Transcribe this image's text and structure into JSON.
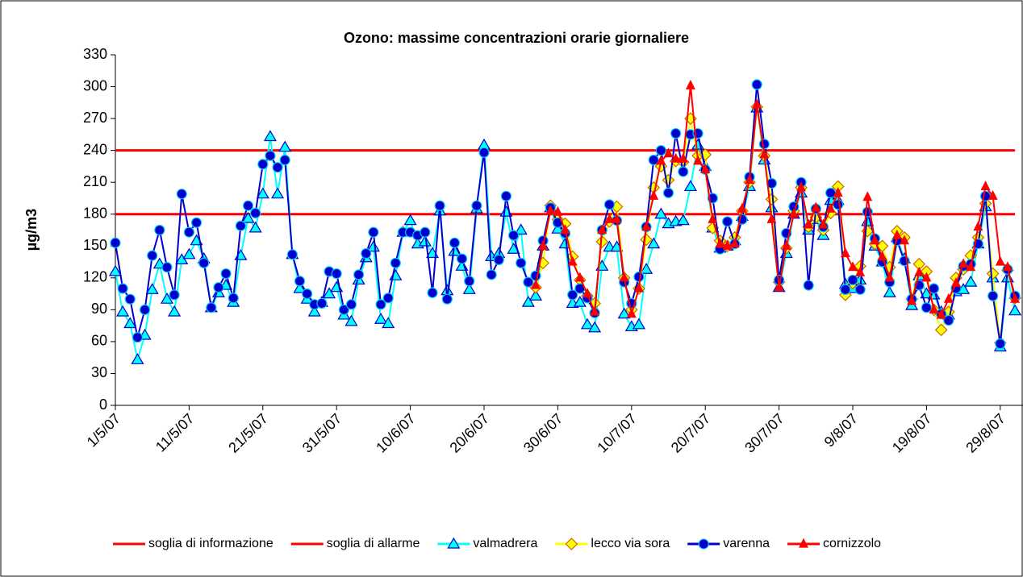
{
  "chart_data": {
    "type": "line",
    "title": "Ozono: massime concentrazioni  orarie giornaliere",
    "y_label": "µg/m3",
    "categories": [
      "1/5/07",
      null,
      null,
      null,
      null,
      null,
      null,
      null,
      null,
      null,
      "11/5/07",
      null,
      null,
      null,
      null,
      null,
      null,
      null,
      null,
      null,
      "21/5/07",
      null,
      null,
      null,
      null,
      null,
      null,
      null,
      null,
      null,
      "31/5/07",
      null,
      null,
      null,
      null,
      null,
      null,
      null,
      null,
      null,
      "10/6/07",
      null,
      null,
      null,
      null,
      null,
      null,
      null,
      null,
      null,
      "20/6/07",
      null,
      null,
      null,
      null,
      null,
      null,
      null,
      null,
      null,
      "30/6/07",
      null,
      null,
      null,
      null,
      null,
      null,
      null,
      null,
      null,
      "10/7/07",
      null,
      null,
      null,
      null,
      null,
      null,
      null,
      null,
      null,
      "20/7/07",
      null,
      null,
      null,
      null,
      null,
      null,
      null,
      null,
      null,
      "30/7/07",
      null,
      null,
      null,
      null,
      null,
      null,
      null,
      null,
      null,
      "9/8/07",
      null,
      null,
      null,
      null,
      null,
      null,
      null,
      null,
      null,
      "19/8/07",
      null,
      null,
      null,
      null,
      null,
      null,
      null,
      null,
      null,
      "29/8/07",
      null,
      null
    ],
    "ylim": [
      0,
      330
    ],
    "yticks": [
      0,
      30,
      60,
      90,
      120,
      150,
      180,
      210,
      240,
      270,
      300,
      330
    ],
    "legend": "bottom",
    "series": [
      {
        "name": "soglia di informazione",
        "color": "#ff0000",
        "marker": "none",
        "values": [
          180,
          180,
          180,
          180,
          180,
          180,
          180,
          180,
          180,
          180,
          180,
          180,
          180,
          180,
          180,
          180,
          180,
          180,
          180,
          180,
          180,
          180,
          180,
          180,
          180,
          180,
          180,
          180,
          180,
          180,
          180,
          180,
          180,
          180,
          180,
          180,
          180,
          180,
          180,
          180,
          180,
          180,
          180,
          180,
          180,
          180,
          180,
          180,
          180,
          180,
          180,
          180,
          180,
          180,
          180,
          180,
          180,
          180,
          180,
          180,
          180,
          180,
          180,
          180,
          180,
          180,
          180,
          180,
          180,
          180,
          180,
          180,
          180,
          180,
          180,
          180,
          180,
          180,
          180,
          180,
          180,
          180,
          180,
          180,
          180,
          180,
          180,
          180,
          180,
          180,
          180,
          180,
          180,
          180,
          180,
          180,
          180,
          180,
          180,
          180,
          180,
          180,
          180,
          180,
          180,
          180,
          180,
          180,
          180,
          180,
          180,
          180,
          180,
          180,
          180,
          180,
          180,
          180,
          180,
          180,
          180,
          180,
          180
        ]
      },
      {
        "name": "soglia di allarme",
        "color": "#ff0000",
        "marker": "none",
        "values": [
          240,
          240,
          240,
          240,
          240,
          240,
          240,
          240,
          240,
          240,
          240,
          240,
          240,
          240,
          240,
          240,
          240,
          240,
          240,
          240,
          240,
          240,
          240,
          240,
          240,
          240,
          240,
          240,
          240,
          240,
          240,
          240,
          240,
          240,
          240,
          240,
          240,
          240,
          240,
          240,
          240,
          240,
          240,
          240,
          240,
          240,
          240,
          240,
          240,
          240,
          240,
          240,
          240,
          240,
          240,
          240,
          240,
          240,
          240,
          240,
          240,
          240,
          240,
          240,
          240,
          240,
          240,
          240,
          240,
          240,
          240,
          240,
          240,
          240,
          240,
          240,
          240,
          240,
          240,
          240,
          240,
          240,
          240,
          240,
          240,
          240,
          240,
          240,
          240,
          240,
          240,
          240,
          240,
          240,
          240,
          240,
          240,
          240,
          240,
          240,
          240,
          240,
          240,
          240,
          240,
          240,
          240,
          240,
          240,
          240,
          240,
          240,
          240,
          240,
          240,
          240,
          240,
          240,
          240,
          240,
          240,
          240,
          240
        ]
      },
      {
        "name": "valmadrera",
        "color": "#00ffff",
        "marker": "triangle",
        "marker_edge": "#0000cc",
        "values": [
          126,
          88,
          77,
          43,
          66,
          109,
          133,
          100,
          88,
          137,
          142,
          155,
          138,
          92,
          106,
          113,
          97,
          141,
          176,
          167,
          199,
          253,
          199,
          243,
          142,
          110,
          100,
          88,
          97,
          105,
          111,
          85,
          79,
          118,
          139,
          149,
          81,
          77,
          122,
          163,
          174,
          152,
          154,
          143,
          183,
          108,
          145,
          131,
          109,
          185,
          245,
          140,
          143,
          182,
          147,
          165,
          97,
          103,
          150,
          186,
          166,
          152,
          96,
          97,
          76,
          73,
          131,
          149,
          149,
          86,
          74,
          76,
          128,
          152,
          180,
          171,
          173,
          174,
          206,
          245,
          225,
          167,
          148,
          150,
          155,
          178,
          206,
          280,
          231,
          186,
          111,
          143,
          180,
          200,
          165,
          175,
          160,
          193,
          193,
          114,
          110,
          118,
          173,
          150,
          135,
          106,
          158,
          138,
          94,
          122,
          105,
          104,
          88,
          85,
          107,
          109,
          116,
          152,
          187,
          120,
          55,
          120,
          89
        ]
      },
      {
        "name": "lecco via sora",
        "color": "#ffff00",
        "marker": "diamond",
        "marker_edge": "#cc6600",
        "values": [
          null,
          null,
          null,
          null,
          null,
          null,
          null,
          null,
          null,
          null,
          null,
          null,
          null,
          null,
          null,
          null,
          null,
          null,
          null,
          null,
          null,
          null,
          null,
          null,
          null,
          null,
          null,
          null,
          null,
          null,
          null,
          null,
          null,
          null,
          null,
          null,
          null,
          null,
          null,
          null,
          null,
          null,
          null,
          null,
          null,
          null,
          null,
          null,
          null,
          null,
          null,
          null,
          null,
          null,
          null,
          null,
          null,
          111,
          134,
          188,
          175,
          171,
          140,
          118,
          103,
          96,
          154,
          173,
          187,
          120,
          90,
          110,
          156,
          205,
          225,
          212,
          230,
          229,
          270,
          235,
          236,
          167,
          155,
          150,
          158,
          183,
          210,
          281,
          235,
          194,
          116,
          148,
          183,
          205,
          168,
          177,
          165,
          181,
          206,
          104,
          115,
          131,
          164,
          152,
          150,
          130,
          164,
          158,
          100,
          133,
          126,
          90,
          71,
          88,
          120,
          128,
          141,
          158,
          190,
          124,
          59,
          127,
          101
        ]
      },
      {
        "name": "varenna",
        "color": "#0000cc",
        "marker": "circle",
        "marker_edge": "#00ccff",
        "values": [
          153,
          110,
          100,
          64,
          90,
          141,
          165,
          130,
          104,
          199,
          163,
          172,
          134,
          92,
          111,
          124,
          101,
          169,
          188,
          181,
          227,
          235,
          224,
          231,
          142,
          117,
          105,
          95,
          96,
          126,
          124,
          90,
          95,
          123,
          143,
          163,
          95,
          101,
          134,
          163,
          163,
          160,
          163,
          106,
          188,
          100,
          153,
          138,
          117,
          188,
          238,
          123,
          137,
          197,
          160,
          134,
          116,
          122,
          155,
          186,
          172,
          162,
          104,
          110,
          101,
          87,
          165,
          189,
          174,
          116,
          96,
          121,
          168,
          231,
          240,
          200,
          256,
          220,
          255,
          256,
          222,
          195,
          147,
          173,
          152,
          175,
          215,
          302,
          246,
          209,
          118,
          162,
          187,
          210,
          113,
          185,
          168,
          200,
          189,
          109,
          118,
          109,
          182,
          157,
          135,
          116,
          155,
          136,
          100,
          113,
          92,
          110,
          86,
          80,
          110,
          131,
          133,
          152,
          197,
          103,
          58,
          128,
          103
        ]
      },
      {
        "name": "cornizzolo",
        "color": "#ff0000",
        "marker": "small-triangle",
        "marker_edge": "#ff0000",
        "values": [
          null,
          null,
          null,
          null,
          null,
          null,
          null,
          null,
          null,
          null,
          null,
          null,
          null,
          null,
          null,
          null,
          null,
          null,
          null,
          null,
          null,
          null,
          null,
          null,
          null,
          null,
          null,
          null,
          null,
          null,
          null,
          null,
          null,
          null,
          null,
          null,
          null,
          null,
          null,
          null,
          null,
          null,
          null,
          null,
          null,
          null,
          null,
          null,
          null,
          null,
          null,
          null,
          null,
          null,
          null,
          null,
          null,
          113,
          150,
          183,
          182,
          165,
          135,
          120,
          105,
          88,
          165,
          175,
          175,
          120,
          86,
          110,
          168,
          197,
          230,
          237,
          232,
          232,
          301,
          230,
          222,
          175,
          152,
          150,
          152,
          185,
          212,
          283,
          236,
          175,
          111,
          150,
          180,
          205,
          170,
          186,
          170,
          185,
          200,
          143,
          130,
          125,
          196,
          155,
          140,
          120,
          160,
          155,
          98,
          125,
          120,
          90,
          85,
          100,
          115,
          133,
          130,
          168,
          206,
          197,
          135,
          130,
          100
        ]
      }
    ]
  }
}
